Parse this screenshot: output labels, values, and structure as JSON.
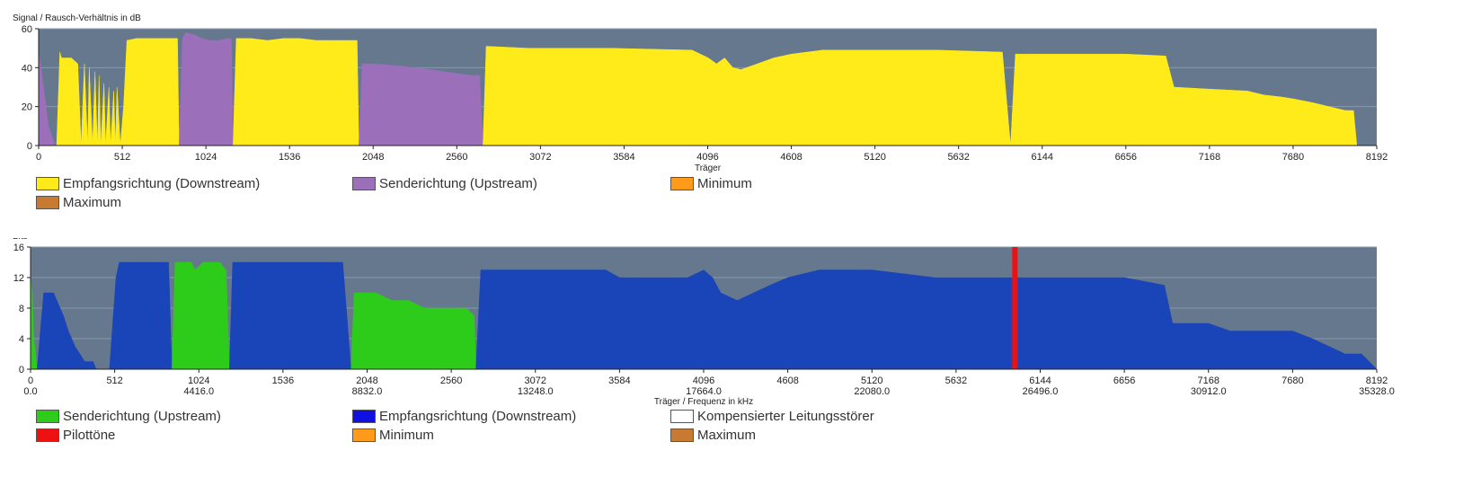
{
  "chart_data": [
    {
      "type": "area",
      "ylabel": "Signal / Rausch-Verhältnis in dB",
      "xlabel": "Träger",
      "xlim": [
        0,
        8192
      ],
      "ylim": [
        0,
        60
      ],
      "x_ticks": [
        "0",
        "512",
        "1024",
        "1536",
        "2048",
        "2560",
        "3072",
        "3584",
        "4096",
        "4608",
        "5120",
        "5632",
        "6144",
        "6656",
        "7168",
        "7680",
        "8192"
      ],
      "y_ticks": [
        "0",
        "20",
        "40",
        "60"
      ],
      "grid": true,
      "legend_position": "bottom",
      "legend": [
        {
          "label": "Empfangsrichtung (Downstream)",
          "color": "#ffeb1a"
        },
        {
          "label": "Senderichtung (Upstream)",
          "color": "#9b6fba"
        },
        {
          "label": "Minimum",
          "color": "#ff9a1a"
        },
        {
          "label": "Maximum",
          "color": "#c87a30"
        }
      ],
      "series": [
        {
          "name": "Senderichtung (Upstream)",
          "color": "#9b6fba",
          "x": [
            0,
            30,
            60,
            100
          ],
          "y": [
            48,
            30,
            10,
            0
          ]
        },
        {
          "name": "Empfangsrichtung (Downstream)",
          "color": "#ffeb1a",
          "x": [
            110,
            130,
            140,
            200,
            240,
            260,
            280,
            300,
            310,
            330,
            345,
            360,
            370,
            380,
            400,
            410,
            430,
            440,
            460,
            470,
            480,
            500,
            510,
            525
          ],
          "y": [
            0,
            48,
            45,
            45,
            42,
            0,
            42,
            0,
            40,
            0,
            38,
            0,
            36,
            0,
            32,
            0,
            30,
            0,
            28,
            0,
            30,
            0,
            0,
            0
          ]
        },
        {
          "name": "Empfangsrichtung (Downstream)",
          "color": "#ffeb1a",
          "x": [
            500,
            520,
            540,
            600,
            700,
            800,
            850,
            860
          ],
          "y": [
            0,
            20,
            54,
            55,
            55,
            55,
            55,
            0
          ]
        },
        {
          "name": "Senderichtung (Upstream)",
          "color": "#9b6fba",
          "x": [
            860,
            880,
            900,
            950,
            1000,
            1050,
            1100,
            1150,
            1180,
            1190
          ],
          "y": [
            0,
            55,
            58,
            57,
            55,
            54,
            54,
            55,
            55,
            0
          ]
        },
        {
          "name": "Empfangsrichtung (Downstream)",
          "color": "#ffeb1a",
          "x": [
            1190,
            1210,
            1300,
            1400,
            1500,
            1600,
            1700,
            1800,
            1900,
            1950,
            1960
          ],
          "y": [
            0,
            55,
            55,
            54,
            55,
            55,
            54,
            54,
            54,
            54,
            0
          ]
        },
        {
          "name": "Senderichtung (Upstream)",
          "color": "#9b6fba",
          "x": [
            1960,
            1980,
            2048,
            2200,
            2400,
            2560,
            2650,
            2700,
            2720
          ],
          "y": [
            0,
            42,
            42,
            41,
            39,
            37,
            36,
            36,
            0
          ]
        },
        {
          "name": "Empfangsrichtung (Downstream)",
          "color": "#ffeb1a",
          "x": [
            2720,
            2740,
            3000,
            3500,
            4000,
            4100,
            4150,
            4200,
            4250,
            4300,
            4400,
            4500,
            4608,
            4800,
            5120,
            5500,
            5900,
            5950,
            5980,
            6050,
            6656,
            6900,
            6950,
            7168,
            7400,
            7500,
            7600,
            7680,
            7800,
            7900,
            8000,
            8050,
            8070,
            8192
          ],
          "y": [
            0,
            51,
            50,
            50,
            49,
            45,
            42,
            45,
            40,
            39,
            42,
            45,
            47,
            49,
            49,
            49,
            48,
            0,
            47,
            47,
            47,
            46,
            30,
            29,
            28,
            26,
            25,
            24,
            22,
            20,
            18,
            18,
            0,
            0
          ]
        }
      ]
    },
    {
      "type": "area",
      "ylabel": "Bits",
      "xlabel": "Träger / Frequenz in kHz",
      "xlim": [
        0,
        8192
      ],
      "ylim": [
        0,
        16
      ],
      "x_ticks": [
        "0",
        "512",
        "1024",
        "1536",
        "2048",
        "2560",
        "3072",
        "3584",
        "4096",
        "4608",
        "5120",
        "5632",
        "6144",
        "6656",
        "7168",
        "7680",
        "8192"
      ],
      "x_ticks_khz": [
        "0.0",
        "4416.0",
        "8832.0",
        "13248.0",
        "17664.0",
        "22080.0",
        "26496.0",
        "30912.0",
        "35328.0"
      ],
      "y_ticks": [
        "0",
        "4",
        "8",
        "12",
        "16"
      ],
      "grid": true,
      "legend_position": "bottom",
      "legend": [
        {
          "label": "Senderichtung (Upstream)",
          "color": "#2ecc1a"
        },
        {
          "label": "Empfangsrichtung (Downstream)",
          "color": "#1010e0"
        },
        {
          "label": "Kompensierter Leitungsstörer",
          "color": "#ffffff"
        },
        {
          "label": "Pilottöne",
          "color": "#ee1111"
        },
        {
          "label": "Minimum",
          "color": "#ff9a1a"
        },
        {
          "label": "Maximum",
          "color": "#c87a30"
        }
      ],
      "series": [
        {
          "name": "Senderichtung (Upstream)",
          "color": "#2ecc1a",
          "x": [
            0,
            10,
            20,
            40
          ],
          "y": [
            12,
            10,
            4,
            0
          ]
        },
        {
          "name": "Empfangsrichtung (Downstream)",
          "color": "#1a45b8",
          "x": [
            40,
            80,
            140,
            200,
            230,
            270,
            300,
            330,
            380,
            400,
            440,
            460,
            500
          ],
          "y": [
            0,
            10,
            10,
            7,
            5,
            3,
            2,
            1,
            1,
            0,
            0,
            0,
            0
          ]
        },
        {
          "name": "Empfangsrichtung (Downstream)",
          "color": "#1a45b8",
          "x": [
            480,
            520,
            540,
            840,
            860
          ],
          "y": [
            0,
            12,
            14,
            14,
            0
          ]
        },
        {
          "name": "Senderichtung (Upstream)",
          "color": "#2ecc1a",
          "x": [
            860,
            880,
            900,
            980,
            1000,
            1050,
            1100,
            1150,
            1190,
            1210
          ],
          "y": [
            0,
            14,
            14,
            14,
            13,
            14,
            14,
            14,
            13,
            0
          ]
        },
        {
          "name": "Empfangsrichtung (Downstream)",
          "color": "#1a45b8",
          "x": [
            1210,
            1230,
            1300,
            1500,
            1800,
            1900,
            1950
          ],
          "y": [
            0,
            14,
            14,
            14,
            14,
            14,
            0
          ]
        },
        {
          "name": "Senderichtung (Upstream)",
          "color": "#2ecc1a",
          "x": [
            1950,
            1970,
            2048,
            2100,
            2200,
            2300,
            2400,
            2500,
            2560,
            2650,
            2700,
            2710
          ],
          "y": [
            0,
            10,
            10,
            10,
            9,
            9,
            8,
            8,
            8,
            8,
            7,
            0
          ]
        },
        {
          "name": "Empfangsrichtung (Downstream)",
          "color": "#1a45b8",
          "x": [
            2710,
            2740,
            3072,
            3500,
            3584,
            3700,
            4000,
            4096,
            4150,
            4200,
            4300,
            4400,
            4500,
            4608,
            4800,
            5120,
            5500,
            5632,
            6000,
            6144,
            6656,
            6900,
            6950,
            7168,
            7300,
            7500,
            7680,
            7800,
            7900,
            8000,
            8100,
            8192
          ],
          "y": [
            0,
            13,
            13,
            13,
            12,
            12,
            12,
            13,
            12,
            10,
            9,
            10,
            11,
            12,
            13,
            13,
            12,
            12,
            12,
            12,
            12,
            11,
            6,
            6,
            5,
            5,
            5,
            4,
            3,
            2,
            2,
            0
          ]
        },
        {
          "name": "Pilottöne",
          "color": "#ee1111",
          "x": [
            5990
          ],
          "y": [
            16
          ]
        }
      ]
    }
  ]
}
